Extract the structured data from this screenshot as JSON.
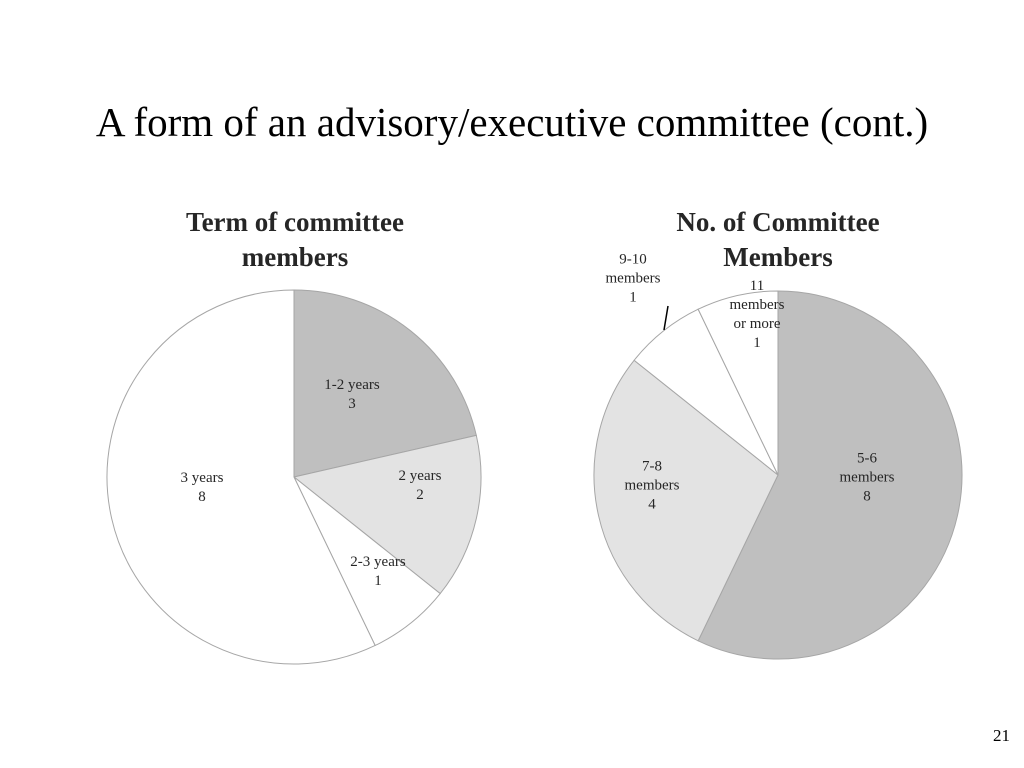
{
  "slide": {
    "title": "A form of an advisory/executive committee (cont.)",
    "page_number": "21"
  },
  "chart_data": [
    {
      "type": "pie",
      "title": "Term of committee members",
      "title_lines": [
        "Term of committee",
        "members"
      ],
      "slices": [
        {
          "label": "1-2 years",
          "label_lines": [
            "1-2 years"
          ],
          "value": 3,
          "color": "#bfbfbf"
        },
        {
          "label": "2 years",
          "label_lines": [
            "2 years"
          ],
          "value": 2,
          "color": "#e3e3e3"
        },
        {
          "label": "2-3 years",
          "label_lines": [
            "2-3 years"
          ],
          "value": 1,
          "color": "#ffffff"
        },
        {
          "label": "3 years",
          "label_lines": [
            "3 years"
          ],
          "value": 8,
          "color": "#ffffff"
        }
      ],
      "stroke_color": "#a6a6a6",
      "legend": "none",
      "data_labels": "category and value"
    },
    {
      "type": "pie",
      "title": "No. of Committee Members",
      "title_lines": [
        "No. of Committee",
        "Members"
      ],
      "slices": [
        {
          "label": "5-6 members",
          "label_lines": [
            "5-6",
            "members"
          ],
          "value": 8,
          "color": "#bfbfbf"
        },
        {
          "label": "7-8 members",
          "label_lines": [
            "7-8",
            "members"
          ],
          "value": 4,
          "color": "#e3e3e3"
        },
        {
          "label": "9-10 members",
          "label_lines": [
            "9-10",
            "members"
          ],
          "value": 1,
          "color": "#ffffff"
        },
        {
          "label": "11 members or more",
          "label_lines": [
            "11",
            "members",
            "or more"
          ],
          "value": 1,
          "color": "#ffffff"
        }
      ],
      "stroke_color": "#a6a6a6",
      "legend": "none",
      "data_labels": "category and value"
    }
  ]
}
